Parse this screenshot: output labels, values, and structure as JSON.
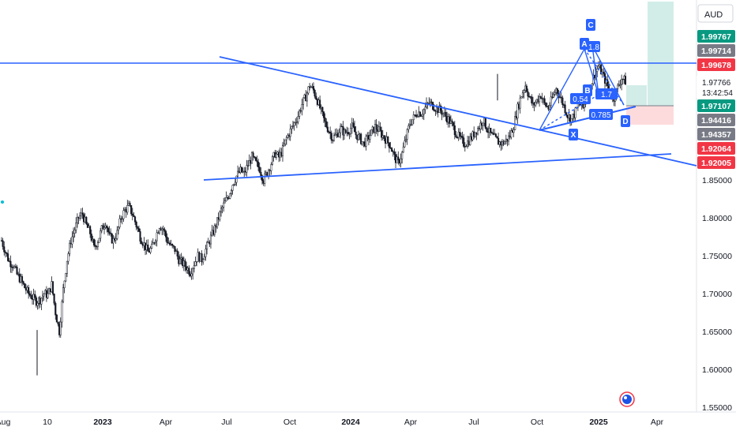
{
  "chart_data": {
    "type": "candlestick",
    "currency": "AUD",
    "x_ticks": [
      "Aug",
      "10",
      "2023",
      "Apr",
      "Jul",
      "Oct",
      "2024",
      "Apr",
      "Jul",
      "Oct",
      "2025",
      "Apr"
    ],
    "y_ticks": [
      "1.85000",
      "1.80000",
      "1.75000",
      "1.70000",
      "1.65000",
      "1.60000",
      "1.55000"
    ],
    "ylim": [
      1.55,
      2.01
    ],
    "price_labels": [
      {
        "value": 1.99767,
        "text": "1.99767",
        "color": "#089981"
      },
      {
        "value": 1.99714,
        "text": "1.99714",
        "color": "#787b86"
      },
      {
        "value": 1.99678,
        "text": "1.99678",
        "color": "#f23645"
      },
      {
        "value": 1.97107,
        "text": "1.97107",
        "color": "#089981"
      },
      {
        "value": 1.94416,
        "text": "1.94416",
        "color": "#787b86"
      },
      {
        "value": 1.94357,
        "text": "1.94357",
        "color": "#787b86"
      },
      {
        "value": 1.92064,
        "text": "1.92064",
        "color": "#f23645"
      },
      {
        "value": 1.92005,
        "text": "1.92005",
        "color": "#f23645"
      }
    ],
    "current_price": {
      "value": 1.97766,
      "text": "1.97766",
      "countdown": "13:42:54"
    },
    "pattern_points": [
      "X",
      "A",
      "B",
      "C",
      "D"
    ],
    "pattern_ratios": [
      "0.54",
      "1.7",
      "0.785",
      "1.8"
    ],
    "series": [
      {
        "name": "",
        "values": [
          1.77,
          1.755,
          1.742,
          1.738,
          1.725,
          1.718,
          1.708,
          1.7,
          1.695,
          1.69,
          1.692,
          1.7,
          1.698,
          1.712,
          1.675,
          1.65,
          1.705,
          1.745,
          1.77,
          1.785,
          1.8,
          1.805,
          1.79,
          1.78,
          1.76,
          1.77,
          1.785,
          1.795,
          1.775,
          1.77,
          1.78,
          1.8,
          1.81,
          1.815,
          1.805,
          1.79,
          1.775,
          1.765,
          1.755,
          1.76,
          1.775,
          1.79,
          1.785,
          1.77,
          1.762,
          1.758,
          1.745,
          1.74,
          1.735,
          1.728,
          1.74,
          1.75,
          1.745,
          1.758,
          1.77,
          1.782,
          1.795,
          1.81,
          1.82,
          1.83,
          1.845,
          1.855,
          1.862,
          1.858,
          1.87,
          1.88,
          1.872,
          1.865,
          1.85,
          1.86,
          1.872,
          1.885,
          1.88,
          1.89,
          1.905,
          1.915,
          1.925,
          1.935,
          1.95,
          1.96,
          1.975,
          1.968,
          1.955,
          1.94,
          1.925,
          1.915,
          1.905,
          1.91,
          1.918,
          1.912,
          1.915,
          1.92,
          1.91,
          1.905,
          1.898,
          1.904,
          1.912,
          1.92,
          1.915,
          1.908,
          1.902,
          1.895,
          1.88,
          1.872,
          1.885,
          1.905,
          1.925,
          1.932,
          1.94,
          1.938,
          1.945,
          1.952,
          1.948,
          1.944,
          1.942,
          1.936,
          1.93,
          1.922,
          1.912,
          1.905,
          1.898,
          1.9,
          1.906,
          1.914,
          1.92,
          1.93,
          1.918,
          1.91,
          1.905,
          1.9,
          1.898,
          1.902,
          1.908,
          1.922,
          1.945,
          1.962,
          1.975,
          1.96,
          1.948,
          1.955,
          1.962,
          1.95,
          1.945,
          1.958,
          1.97,
          1.96,
          1.948,
          1.935,
          1.93,
          1.94,
          1.952,
          1.945,
          1.96,
          1.975,
          1.99,
          2.0,
          1.99,
          1.978,
          1.965,
          1.958,
          1.972,
          1.985,
          1.98
        ]
      }
    ],
    "colors": {
      "up": "#089981",
      "down": "#f23645",
      "candle": "#131722",
      "line": "#2962ff",
      "badge": "#2962ff",
      "profit": "#089981",
      "loss": "#f23645"
    }
  }
}
